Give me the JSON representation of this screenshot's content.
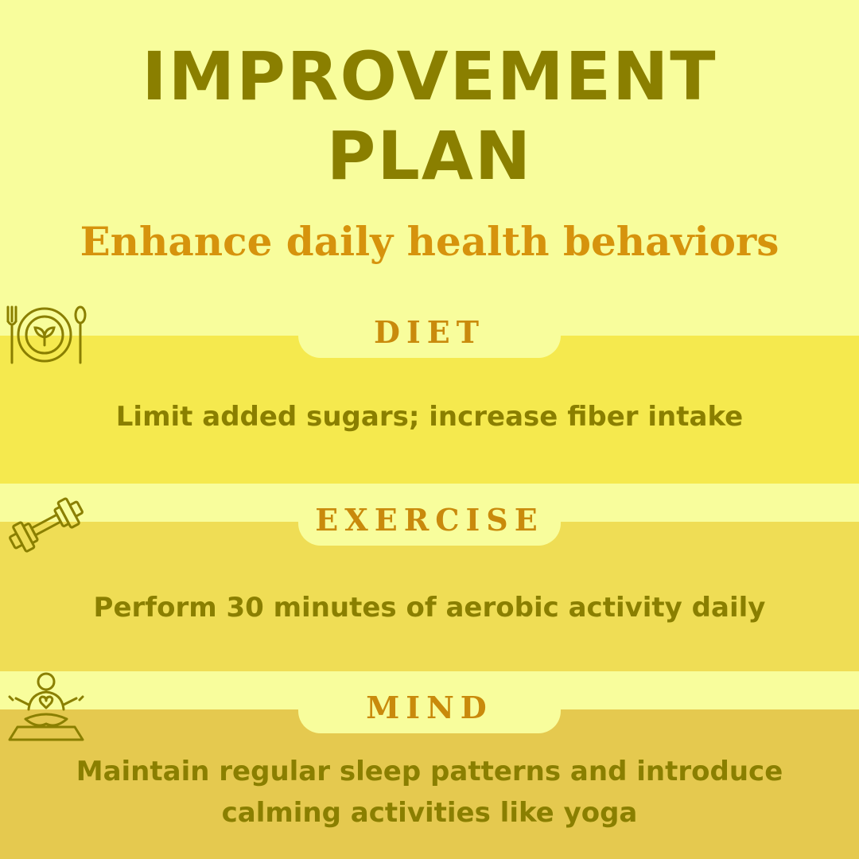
{
  "header": {
    "title_line1": "IMPROVEMENT",
    "title_line2": "PLAN",
    "subtitle": "Enhance daily health behaviors"
  },
  "sections": [
    {
      "heading": "DIET",
      "icon": "plate-fork-spoon-icon",
      "text": "Limit added sugars; increase fiber intake"
    },
    {
      "heading": "EXERCISE",
      "icon": "dumbbell-icon",
      "text": "Perform 30 minutes of aerobic activity daily"
    },
    {
      "heading": "MIND",
      "icon": "meditation-icon",
      "text": "Maintain regular sleep patterns and introduce calming activities like yoga"
    }
  ],
  "colors": {
    "background": "#f8fd9c",
    "title": "#8a7f00",
    "accent": "#d6930d",
    "band_diet": "#f5e94e",
    "band_exercise": "#efdd55",
    "band_mind": "#e5c94f"
  }
}
